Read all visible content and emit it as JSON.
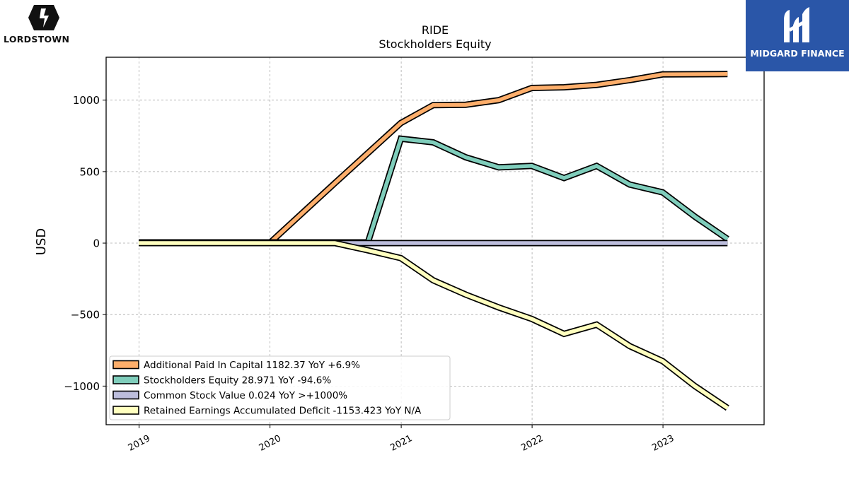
{
  "brand": {
    "name": "LORDSTOWN",
    "icon": "lordstown-lightning-logo-icon"
  },
  "watermark": {
    "name": "MIDGARD FINANCE",
    "icon": "midgard-m-logo-icon",
    "color": "#2a56a8"
  },
  "chart_data": {
    "type": "line",
    "title": "RIDE",
    "subtitle": "Stockholders  Equity",
    "ylabel": "USD",
    "xlabel": "",
    "xlim": [
      "2018-10-01",
      "2023-10-10"
    ],
    "ylim": [
      -1270,
      1300
    ],
    "xticks": [
      {
        "date": "2019-01-01",
        "label": "2019"
      },
      {
        "date": "2020-01-01",
        "label": "2020"
      },
      {
        "date": "2021-01-01",
        "label": "2021"
      },
      {
        "date": "2022-01-01",
        "label": "2022"
      },
      {
        "date": "2023-01-01",
        "label": "2023"
      }
    ],
    "yticks": [
      {
        "value": 1000,
        "label": "1000"
      },
      {
        "value": 500,
        "label": "500"
      },
      {
        "value": 0,
        "label": "0"
      },
      {
        "value": -500,
        "label": "−500"
      },
      {
        "value": -1000,
        "label": "−1000"
      }
    ],
    "grid": true,
    "legend_position": "lower-left",
    "series": [
      {
        "name": "Additional Paid In Capital",
        "legend_label": "Additional Paid In Capital  1182.37 YoY +6.9%",
        "color": "#fdae6b",
        "points": [
          [
            "2018-12-31",
            0
          ],
          [
            "2019-03-31",
            0
          ],
          [
            "2019-06-30",
            0
          ],
          [
            "2019-09-30",
            0
          ],
          [
            "2019-12-31",
            0
          ],
          [
            "2020-06-30",
            420
          ],
          [
            "2020-12-31",
            840
          ],
          [
            "2021-03-31",
            965
          ],
          [
            "2021-06-30",
            968
          ],
          [
            "2021-09-30",
            1000
          ],
          [
            "2021-12-31",
            1085
          ],
          [
            "2022-03-31",
            1090
          ],
          [
            "2022-06-30",
            1107
          ],
          [
            "2022-09-30",
            1140
          ],
          [
            "2022-12-31",
            1180
          ],
          [
            "2023-06-30",
            1182.37
          ]
        ]
      },
      {
        "name": "Stockholders Equity",
        "legend_label": "Stockholders Equity  28.971 YoY -94.6%",
        "color": "#7fcdbb",
        "points": [
          [
            "2018-12-31",
            5
          ],
          [
            "2019-03-31",
            5
          ],
          [
            "2019-06-30",
            5
          ],
          [
            "2019-09-30",
            5
          ],
          [
            "2019-12-31",
            5
          ],
          [
            "2020-06-30",
            5
          ],
          [
            "2020-09-30",
            5
          ],
          [
            "2020-12-31",
            730
          ],
          [
            "2021-03-31",
            705
          ],
          [
            "2021-06-30",
            600
          ],
          [
            "2021-09-30",
            530
          ],
          [
            "2021-12-31",
            540
          ],
          [
            "2022-03-31",
            455
          ],
          [
            "2022-06-30",
            540
          ],
          [
            "2022-09-30",
            410
          ],
          [
            "2022-12-31",
            355
          ],
          [
            "2023-03-31",
            185
          ],
          [
            "2023-06-30",
            28.971
          ]
        ]
      },
      {
        "name": "Common Stock Value",
        "legend_label": "Common Stock Value  0.024 YoY >+1000%",
        "color": "#bcbddc",
        "points": [
          [
            "2019-12-31",
            0
          ],
          [
            "2020-06-30",
            0
          ],
          [
            "2020-12-31",
            0
          ],
          [
            "2021-06-30",
            0
          ],
          [
            "2021-12-31",
            0
          ],
          [
            "2022-06-30",
            0
          ],
          [
            "2022-12-31",
            0
          ],
          [
            "2023-06-30",
            0.024
          ]
        ]
      },
      {
        "name": "Retained Earnings Accumulated Deficit",
        "legend_label": "Retained Earnings Accumulated Deficit  -1153.423 YoY N/A",
        "color": "#ffffbf",
        "points": [
          [
            "2018-12-31",
            0
          ],
          [
            "2019-03-31",
            0
          ],
          [
            "2019-06-30",
            0
          ],
          [
            "2019-09-30",
            0
          ],
          [
            "2019-12-31",
            0
          ],
          [
            "2020-06-30",
            0
          ],
          [
            "2020-09-30",
            -50
          ],
          [
            "2020-12-31",
            -105
          ],
          [
            "2021-03-31",
            -260
          ],
          [
            "2021-06-30",
            -360
          ],
          [
            "2021-09-30",
            -450
          ],
          [
            "2021-12-31",
            -530
          ],
          [
            "2022-03-31",
            -635
          ],
          [
            "2022-06-30",
            -570
          ],
          [
            "2022-09-30",
            -720
          ],
          [
            "2022-12-31",
            -825
          ],
          [
            "2023-03-31",
            -1000
          ],
          [
            "2023-06-30",
            -1153.423
          ]
        ]
      }
    ]
  }
}
